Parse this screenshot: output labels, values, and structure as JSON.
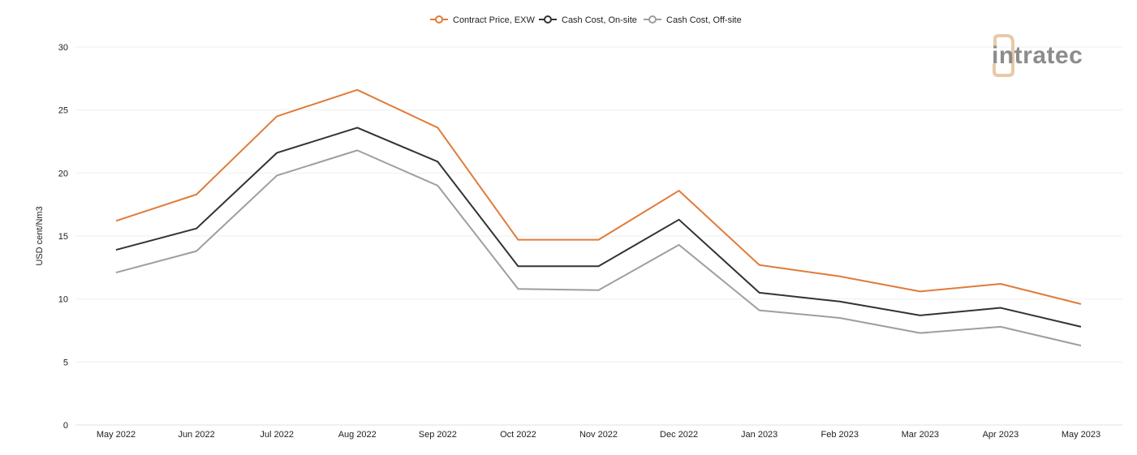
{
  "chart_data": {
    "type": "line",
    "title": "",
    "xlabel": "",
    "ylabel": "USD cent/Nm3",
    "ylim": [
      0,
      30
    ],
    "yticks": [
      0,
      5,
      10,
      15,
      20,
      25,
      30
    ],
    "grid": true,
    "legend_position": "top-center",
    "categories": [
      "May 2022",
      "Jun 2022",
      "Jul 2022",
      "Aug 2022",
      "Sep 2022",
      "Oct 2022",
      "Nov 2022",
      "Dec 2022",
      "Jan 2023",
      "Feb 2023",
      "Mar 2023",
      "Apr 2023",
      "May 2023"
    ],
    "series": [
      {
        "name": "Contract Price, EXW",
        "color": "#e07b39",
        "values": [
          16.2,
          18.3,
          24.5,
          26.6,
          23.6,
          14.7,
          14.7,
          18.6,
          12.7,
          11.8,
          10.6,
          11.2,
          9.6
        ]
      },
      {
        "name": "Cash Cost, On-site",
        "color": "#333333",
        "values": [
          13.9,
          15.6,
          21.6,
          23.6,
          20.9,
          12.6,
          12.6,
          16.3,
          10.5,
          9.8,
          8.7,
          9.3,
          7.8
        ]
      },
      {
        "name": "Cash Cost, Off-site",
        "color": "#9e9e9e",
        "values": [
          12.1,
          13.8,
          19.8,
          21.8,
          19.0,
          10.8,
          10.7,
          14.3,
          9.1,
          8.5,
          7.3,
          7.8,
          6.3
        ]
      }
    ]
  },
  "logo": {
    "text": "intratec",
    "glyph_color": "#e8c9a8"
  }
}
